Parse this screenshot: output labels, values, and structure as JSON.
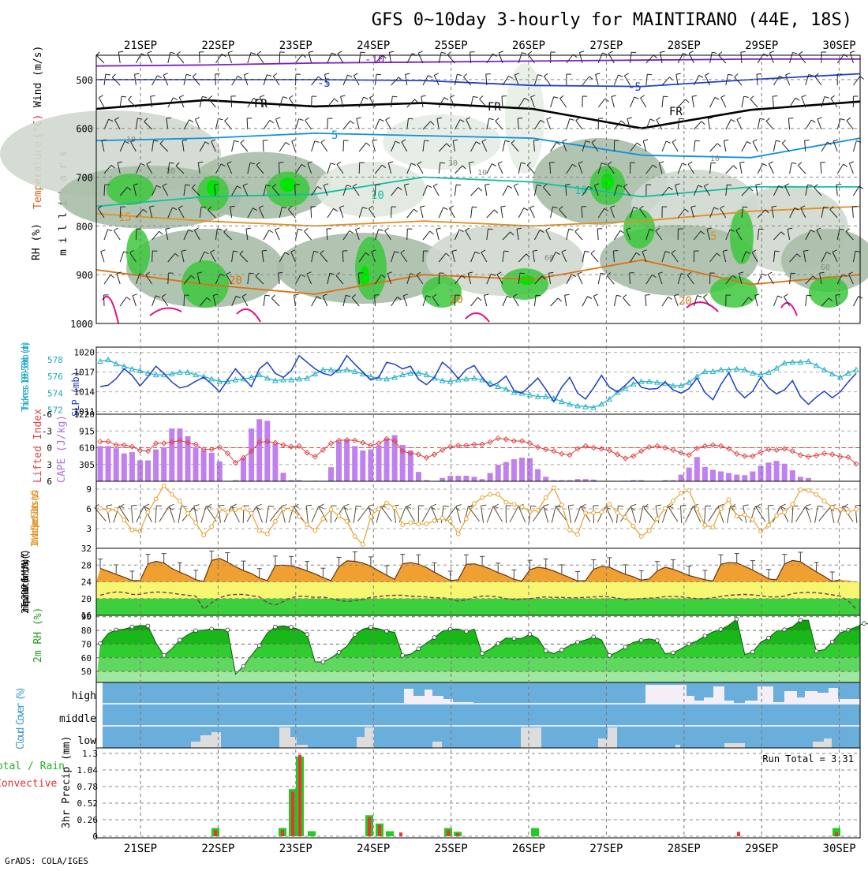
{
  "title": "GFS 0~10day 3-hourly for MAINTIRANO (44E, 18S)",
  "footer": "GrADS: COLA/IGES",
  "dates": [
    "21SEP",
    "22SEP",
    "23SEP",
    "24SEP",
    "25SEP",
    "26SEP",
    "27SEP",
    "28SEP",
    "29SEP",
    "30SEP"
  ],
  "colors": {
    "rh_green": "#3cc83c",
    "rh_bright": "#00e600",
    "temp_orange": "#e08a1e",
    "thick_cyan": "#20b0c8",
    "slp_blue": "#1d3fc8",
    "cape_purple": "#c080f0",
    "li_red": "#e04040",
    "wind_orange": "#e8a030",
    "cloud_blue": "#6aaedb",
    "precip_green": "#22cc22",
    "precip_red": "#ee3333"
  },
  "chart_data": [
    {
      "type": "contour",
      "name": "upper-air",
      "ylabel": "m i l l i b a r s",
      "legend_labels": [
        "RH (%)",
        "Temperature",
        "(°C)",
        "Wind (m/s)"
      ],
      "y_ticks": [
        500,
        600,
        700,
        800,
        900,
        1000
      ],
      "ylim": [
        450,
        1000
      ],
      "isotherm_labels": [
        "-10",
        "-5",
        "-5",
        "FR",
        "FR",
        "FR",
        "5",
        "10",
        "10",
        "15",
        "20",
        "20",
        "20",
        "5",
        "10",
        "30",
        "30",
        "10",
        "10",
        "60",
        "60"
      ],
      "isotherms": [
        {
          "name": "-10",
          "color": "#8020c0",
          "p": [
            472,
            470,
            466,
            464,
            462,
            460,
            458,
            458
          ]
        },
        {
          "name": "-5",
          "color": "#2040d0",
          "p": [
            500,
            500,
            500,
            502,
            512,
            514,
            500,
            488
          ]
        },
        {
          "name": "0",
          "color": "#000000",
          "p": [
            560,
            542,
            555,
            548,
            560,
            600,
            562,
            545
          ]
        },
        {
          "name": "5",
          "color": "#1090e0",
          "p": [
            625,
            620,
            610,
            615,
            620,
            655,
            660,
            620
          ]
        },
        {
          "name": "10",
          "color": "#10c0a0",
          "p": [
            760,
            740,
            735,
            700,
            710,
            740,
            720,
            720
          ]
        },
        {
          "name": "15",
          "color": "#e09020",
          "p": [
            775,
            790,
            800,
            790,
            800,
            790,
            770,
            760
          ]
        },
        {
          "name": "20",
          "color": "#e07010",
          "p": [
            890,
            920,
            940,
            900,
            910,
            870,
            920,
            900
          ]
        }
      ]
    },
    {
      "type": "line",
      "name": "thickness-slp",
      "ylabel_left": "Thickness 1000-500mb (dm)",
      "ylabel_right": "SLP (mb)",
      "thickness_ticks": [
        572,
        574,
        576,
        578
      ],
      "slp_ticks": [
        1011,
        1014,
        1017,
        1020
      ],
      "thickness": [
        577.8,
        578.0,
        577.5,
        577.2,
        576.9,
        576.7,
        576.4,
        576.2,
        576.2,
        576.3,
        576.5,
        576.5,
        576.2,
        576.0,
        575.7,
        575.4,
        575.4,
        575.6,
        575.7,
        575.9,
        576.2,
        575.8,
        575.5,
        575.6,
        575.6,
        575.7,
        575.8,
        576.3,
        576.8,
        576.8,
        576.7,
        576.8,
        576.6,
        576.3,
        576.0,
        575.8,
        575.7,
        575.9,
        576.2,
        576.4,
        576.4,
        576.2,
        575.8,
        575.5,
        575.4,
        575.6,
        575.7,
        575.8,
        575.6,
        575.2,
        574.8,
        574.5,
        574.1,
        574.0,
        573.8,
        573.6,
        573.6,
        573.4,
        573.0,
        572.7,
        572.5,
        572.4,
        572.3,
        572.7,
        573.3,
        574.1,
        574.6,
        575.1,
        575.4,
        575.4,
        575.3,
        575.2,
        574.9,
        574.9,
        575.3,
        576.0,
        576.6,
        576.6,
        576.8,
        576.8,
        576.9,
        576.8,
        576.4,
        576.2,
        576.5,
        577.0,
        577.6,
        577.7,
        577.7,
        577.8,
        577.3,
        576.8,
        576.3,
        575.9,
        576.4,
        576.8
      ],
      "slp": [
        1014.8,
        1015.0,
        1016.0,
        1017.5,
        1016.5,
        1014.9,
        1016.3,
        1017.9,
        1016.8,
        1015.5,
        1014.6,
        1014.9,
        1015.6,
        1016.2,
        1015.2,
        1014.0,
        1015.8,
        1017.5,
        1016.1,
        1014.8,
        1017.5,
        1018.5,
        1016.8,
        1016.2,
        1017.2,
        1019.5,
        1018.5,
        1017.5,
        1016.8,
        1016.5,
        1017.5,
        1019.5,
        1018.2,
        1017.0,
        1015.8,
        1016.2,
        1018.5,
        1018.2,
        1017.5,
        1017.9,
        1015.9,
        1015.1,
        1016.2,
        1018.5,
        1017.5,
        1016.0,
        1017.4,
        1018.0,
        1016.2,
        1014.8,
        1015.4,
        1016.4,
        1014.2,
        1013.8,
        1014.9,
        1016.1,
        1014.4,
        1012.5,
        1014.7,
        1016.2,
        1013.8,
        1012.9,
        1014.6,
        1016.5,
        1014.7,
        1014.0,
        1015.0,
        1016.2,
        1014.7,
        1014.4,
        1014.5,
        1015.5,
        1014.3,
        1013.8,
        1014.5,
        1016.1,
        1013.9,
        1012.8,
        1015.1,
        1016.9,
        1014.3,
        1013.1,
        1014.1,
        1016.2,
        1014.6,
        1013.7,
        1014.3,
        1015.7,
        1013.3,
        1012.1,
        1013.2,
        1014.1,
        1013.1,
        1014.0,
        1015.5,
        1016.8
      ]
    },
    {
      "type": "bar+line",
      "name": "cape-lifted-index",
      "ylabel_left": "Lifted Index",
      "ylabel_right": "CAPE (J/kg)",
      "li_ticks": [
        "-6",
        "-3",
        "0",
        "3",
        "6"
      ],
      "cape_ticks": [
        305,
        610,
        915,
        1220
      ],
      "cape": [
        640,
        640,
        600,
        505,
        530,
        380,
        380,
        580,
        620,
        960,
        960,
        820,
        620,
        560,
        520,
        360,
        0,
        20,
        420,
        960,
        1130,
        1100,
        680,
        155,
        20,
        20,
        0,
        10,
        0,
        255,
        720,
        760,
        640,
        560,
        580,
        650,
        780,
        840,
        660,
        560,
        170,
        20,
        0,
        60,
        100,
        100,
        100,
        80,
        40,
        150,
        300,
        350,
        400,
        430,
        420,
        220,
        80,
        20,
        20,
        20,
        40,
        40,
        30,
        0,
        0,
        0,
        10,
        20,
        20,
        0,
        0,
        20,
        20,
        120,
        250,
        440,
        260,
        210,
        180,
        150,
        120,
        110,
        180,
        280,
        340,
        370,
        320,
        200,
        80,
        60,
        0,
        0,
        0,
        0,
        0,
        0
      ],
      "lifted_index": [
        -1.1,
        -1.1,
        -0.5,
        -0.5,
        -0.2,
        0.5,
        0.6,
        -0.8,
        -0.8,
        -1.0,
        -1.3,
        -0.9,
        -0.6,
        0.3,
        0.3,
        -0.1,
        1.0,
        2.7,
        1.8,
        0.6,
        -1.0,
        -1.1,
        -0.9,
        -0.5,
        -0.2,
        -0.3,
        0.9,
        1.6,
        0.4,
        -0.8,
        -1.3,
        -1.4,
        -1.3,
        -0.9,
        -0.4,
        -0.8,
        -1.6,
        -1.2,
        0.6,
        1.0,
        1.2,
        1.8,
        1.2,
        0.4,
        -0.2,
        -0.4,
        -0.4,
        -0.6,
        -0.6,
        -1.0,
        -1.7,
        -1.5,
        -1.2,
        -1.2,
        -0.8,
        -0.1,
        0.3,
        0.6,
        1.1,
        1.3,
        0.2,
        -0.3,
        0.0,
        0.2,
        0.5,
        1.2,
        1.9,
        1.5,
        0.6,
        -0.1,
        -0.3,
        0.0,
        0.4,
        0.9,
        1.3,
        0.1,
        -0.3,
        -0.5,
        -0.3,
        0.2,
        1.1,
        1.5,
        1.5,
        0.8,
        0.3,
        0.4,
        0.2,
        0.6,
        1.3,
        1.6,
        1.4,
        1.0,
        1.2,
        1.6,
        1.7,
        2.9
      ]
    },
    {
      "type": "line",
      "name": "10m-wind",
      "ylabel": "10m Wind Speed & Barbs (m/s)",
      "y_ticks": [
        3,
        6,
        9
      ],
      "ylim": [
        0,
        10.2
      ],
      "speed": [
        6.1,
        5.8,
        5.9,
        4.3,
        2.8,
        2.6,
        5.5,
        7.5,
        9.5,
        8.2,
        7.2,
        5.3,
        3.9,
        2.0,
        3.3,
        5.9,
        5.5,
        5.9,
        6.1,
        5.3,
        2.7,
        2.2,
        4.1,
        6.0,
        6.1,
        4.8,
        3.6,
        2.7,
        4.5,
        5.9,
        4.9,
        4.1,
        1.8,
        0.6,
        4.8,
        6.0,
        6.9,
        6.2,
        3.6,
        3.9,
        3.7,
        3.7,
        4.2,
        4.6,
        4.1,
        2.2,
        4.5,
        6.8,
        7.7,
        8.2,
        8.2,
        7.0,
        6.7,
        6.3,
        5.6,
        5.8,
        7.7,
        9.2,
        6.6,
        2.8,
        2.1,
        5.4,
        5.4,
        5.5,
        6.7,
        5.4,
        4.7,
        3.4,
        1.8,
        2.7,
        4.5,
        6.1,
        7.2,
        8.4,
        8.8,
        6.0,
        3.5,
        3.2,
        6.0,
        7.4,
        4.9,
        5.1,
        4.4,
        2.6,
        3.5,
        5.0,
        5.5,
        6.7,
        8.9,
        8.8,
        8.2,
        7.2,
        6.2,
        5.9,
        5.5,
        5.9
      ]
    },
    {
      "type": "area",
      "name": "2m-temp",
      "ylabel": "2m Temp 2m DewPt (6hr Min/Max) (°C)",
      "y_ticks": [
        16,
        20,
        24,
        28,
        32
      ],
      "ylim": [
        16,
        32
      ],
      "temp": [
        27.2,
        26.5,
        25.8,
        25.1,
        24.3,
        24.3,
        28.3,
        28.9,
        28.5,
        27.2,
        26.3,
        25.5,
        24.5,
        24.1,
        29.1,
        29.6,
        28.7,
        27.6,
        26.7,
        26.0,
        24.9,
        24.3,
        27.9,
        28.0,
        27.8,
        27.3,
        26.6,
        25.9,
        25.0,
        24.3,
        27.6,
        29.0,
        28.9,
        28.5,
        27.7,
        26.6,
        25.6,
        24.6,
        28.3,
        28.6,
        28.2,
        27.4,
        26.3,
        25.3,
        24.3,
        24.5,
        28.2,
        28.3,
        27.8,
        27.1,
        26.2,
        25.5,
        24.6,
        24.2,
        26.9,
        27.5,
        27.2,
        26.6,
        25.8,
        25.0,
        24.2,
        24.3,
        27.0,
        27.7,
        27.5,
        26.6,
        25.8,
        25.2,
        24.4,
        24.7,
        26.6,
        27.5,
        27.0,
        26.3,
        25.5,
        25.0,
        24.5,
        24.2,
        28.2,
        28.6,
        28.5,
        27.7,
        26.8,
        25.8,
        24.7,
        24.5,
        28.3,
        29.1,
        28.8,
        27.6,
        26.4,
        25.3,
        24.1,
        24.5
      ],
      "dewpt": [
        20.8,
        21.3,
        21.6,
        21.5,
        21.0,
        21.0,
        21.4,
        21.6,
        21.5,
        21.3,
        21.0,
        20.8,
        20.6,
        17.5,
        19.0,
        20.2,
        20.8,
        21.0,
        21.0,
        20.7,
        20.4,
        19.0,
        18.5,
        19.3,
        20.2,
        20.6,
        20.5,
        20.3,
        20.4,
        20.0,
        19.6,
        19.3,
        19.5,
        19.8,
        20.3,
        20.5,
        20.7,
        20.8,
        20.8,
        20.6,
        20.5,
        20.4,
        20.2,
        20.2,
        19.9,
        19.4,
        19.7,
        20.3,
        20.6,
        20.6,
        20.4,
        20.0,
        19.8,
        19.9,
        20.0,
        20.2,
        20.4,
        20.3,
        20.3,
        20.2,
        20.2,
        20.3,
        20.4,
        20.5,
        20.4,
        20.1,
        19.8,
        19.9,
        20.0,
        20.1,
        20.2,
        20.5,
        20.5,
        20.4,
        20.2,
        20.0,
        20.0,
        20.2,
        20.5,
        20.8,
        20.9,
        21.0,
        20.9,
        20.7,
        20.4,
        20.4,
        20.6,
        21.2,
        21.4,
        21.5,
        21.4,
        21.2,
        20.9,
        20.6,
        19.5,
        17.5
      ]
    },
    {
      "type": "area",
      "name": "2m-rh",
      "ylabel": "2m RH (%)",
      "y_ticks": [
        50,
        60,
        70,
        80,
        90
      ],
      "ylim": [
        42,
        91
      ],
      "rh": [
        70.5,
        77.8,
        80.4,
        80.9,
        82.6,
        83.6,
        83.3,
        70.9,
        61.7,
        66.7,
        73.0,
        76.8,
        79.9,
        80.3,
        81.0,
        80.9,
        80.4,
        48.1,
        53.8,
        61.9,
        69.0,
        78.1,
        82.6,
        83.4,
        82.4,
        80.6,
        77.1,
        57.0,
        57.0,
        59.9,
        64.0,
        68.5,
        77.0,
        80.9,
        82.3,
        81.2,
        79.5,
        78.6,
        61.7,
        62.6,
        66.6,
        70.8,
        74.8,
        79.4,
        80.9,
        81.0,
        79.3,
        80.9,
        63.3,
        66.3,
        70.4,
        74.4,
        74.1,
        74.2,
        77.2,
        74.2,
        65.2,
        63.1,
        65.8,
        68.9,
        71.4,
        73.1,
        75.3,
        73.0,
        61.8,
        64.3,
        67.9,
        71.3,
        72.8,
        73.8,
        72.6,
        63.0,
        63.7,
        66.6,
        70.1,
        72.4,
        76.0,
        79.0,
        80.7,
        83.8,
        88.3,
        62.4,
        64.3,
        71.4,
        74.5,
        79.6,
        80.5,
        82.7,
        87.5,
        87.5,
        64.9,
        65.9,
        71.7,
        78.2,
        80.3,
        82.5,
        85.2,
        84.5,
        58.0
      ]
    },
    {
      "type": "bar",
      "name": "cloud-cover",
      "ylabel": "Cloud Cover (%)",
      "levels": [
        "high",
        "middle",
        "low"
      ]
    },
    {
      "type": "bar",
      "name": "3hr-precip",
      "ylabel": "3hr Precip (mm)",
      "side_labels": [
        "Total / Rain",
        "Convective"
      ],
      "y_ticks": [
        "0",
        "0.26",
        "0.52",
        "0.78",
        "1.04",
        "1.3"
      ],
      "ylim": [
        0,
        1.3
      ],
      "run_total": "Run Total = 3.31"
    }
  ]
}
